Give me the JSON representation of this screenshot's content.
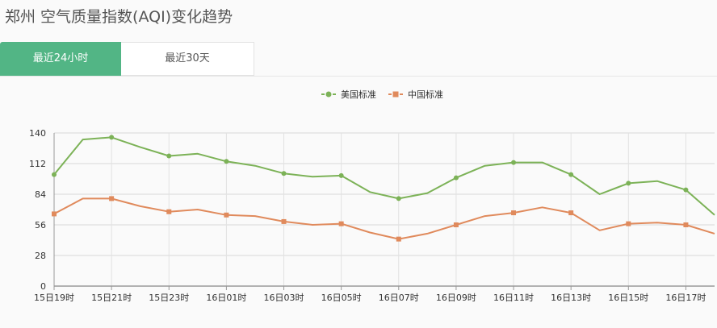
{
  "header": {
    "title": "郑州 空气质量指数(AQI)变化趋势"
  },
  "tabs": [
    {
      "label": "最近24小时",
      "active": true
    },
    {
      "label": "最近30天",
      "active": false
    }
  ],
  "colors": {
    "us_series": "#7cb257",
    "cn_series": "#e08a5c",
    "tab_active": "#52b585"
  },
  "chart_data": {
    "type": "line",
    "title": "",
    "xlabel": "",
    "ylabel": "",
    "ylim": [
      0,
      140
    ],
    "yticks": [
      0,
      28,
      56,
      84,
      112,
      140
    ],
    "grid": true,
    "legend_position": "top-center",
    "x": [
      "15日19时",
      "15日20时",
      "15日21时",
      "15日22时",
      "15日23时",
      "16日00时",
      "16日01时",
      "16日02时",
      "16日03时",
      "16日04时",
      "16日05时",
      "16日06时",
      "16日07时",
      "16日08时",
      "16日09时",
      "16日10时",
      "16日11时",
      "16日12时",
      "16日13时",
      "16日14时",
      "16日15时",
      "16日16时",
      "16日17时",
      "16日18时"
    ],
    "x_tick_labels": [
      "15日19时",
      "15日21时",
      "15日23时",
      "16日01时",
      "16日03时",
      "16日05时",
      "16日07时",
      "16日09时",
      "16日11时",
      "16日13时",
      "16日15时",
      "16日17时"
    ],
    "series": [
      {
        "name": "美国标准",
        "marker": "circle",
        "values": [
          102,
          134,
          136,
          127,
          119,
          121,
          114,
          110,
          103,
          100,
          101,
          86,
          80,
          85,
          99,
          110,
          113,
          113,
          102,
          84,
          94,
          96,
          88,
          65
        ]
      },
      {
        "name": "中国标准",
        "marker": "square",
        "values": [
          66,
          80,
          80,
          73,
          68,
          70,
          65,
          64,
          59,
          56,
          57,
          49,
          43,
          48,
          56,
          64,
          67,
          72,
          67,
          51,
          57,
          58,
          56,
          48
        ]
      }
    ]
  }
}
